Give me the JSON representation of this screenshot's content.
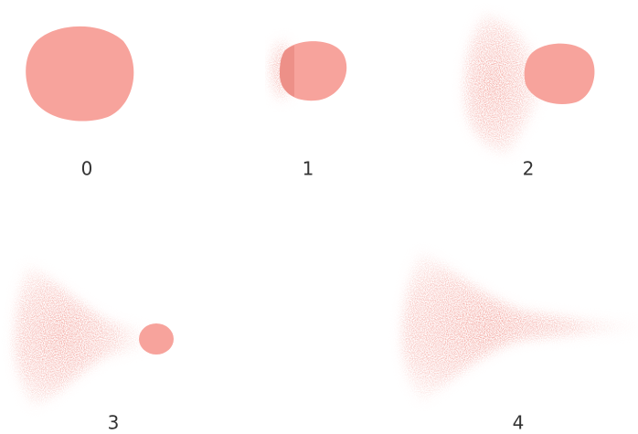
{
  "panels": [
    {
      "label": "0"
    },
    {
      "label": "1"
    },
    {
      "label": "2"
    },
    {
      "label": "3"
    },
    {
      "label": "4"
    }
  ]
}
